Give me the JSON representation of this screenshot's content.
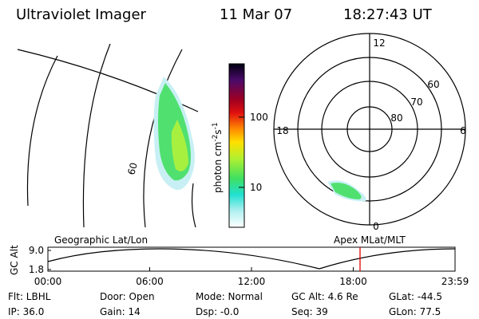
{
  "header": {
    "title": "Ultraviolet Imager",
    "date": "11 Mar 07",
    "time": "18:27:43 UT"
  },
  "map": {
    "grid_label": "60"
  },
  "colorbar": {
    "label": "photon cm",
    "exp1": "-2",
    "unit2": "s",
    "exp2": "-1",
    "ticks": [
      10,
      100
    ],
    "clim": [
      2.7,
      575
    ],
    "log": true
  },
  "polar": {
    "mlt_labels": [
      "12",
      "18",
      "6",
      "0"
    ],
    "lat_labels": [
      "60",
      "70",
      "80"
    ]
  },
  "altitude_plot": {
    "left_title": "Geographic Lat/Lon",
    "right_title": "Apex MLat/MLT",
    "ylabel": "GC Alt",
    "yticks": [
      {
        "value": 9.0,
        "label": "9.0"
      },
      {
        "value": 1.8,
        "label": "1.8"
      }
    ],
    "ylim": [
      1.8,
      9.0
    ],
    "xticks": [
      "00:00",
      "06:00",
      "12:00",
      "18:00",
      "23:59"
    ]
  },
  "footer": {
    "rows": [
      [
        "Flt: LBHL",
        "Door: Open",
        "Mode: Normal",
        "GC Alt: 4.6 Re",
        "GLat: -44.5"
      ],
      [
        "IP: 36.0",
        "Gain: 14",
        "Dsp: -0.0",
        "Seq: 39",
        "GLon: 77.5"
      ]
    ]
  }
}
